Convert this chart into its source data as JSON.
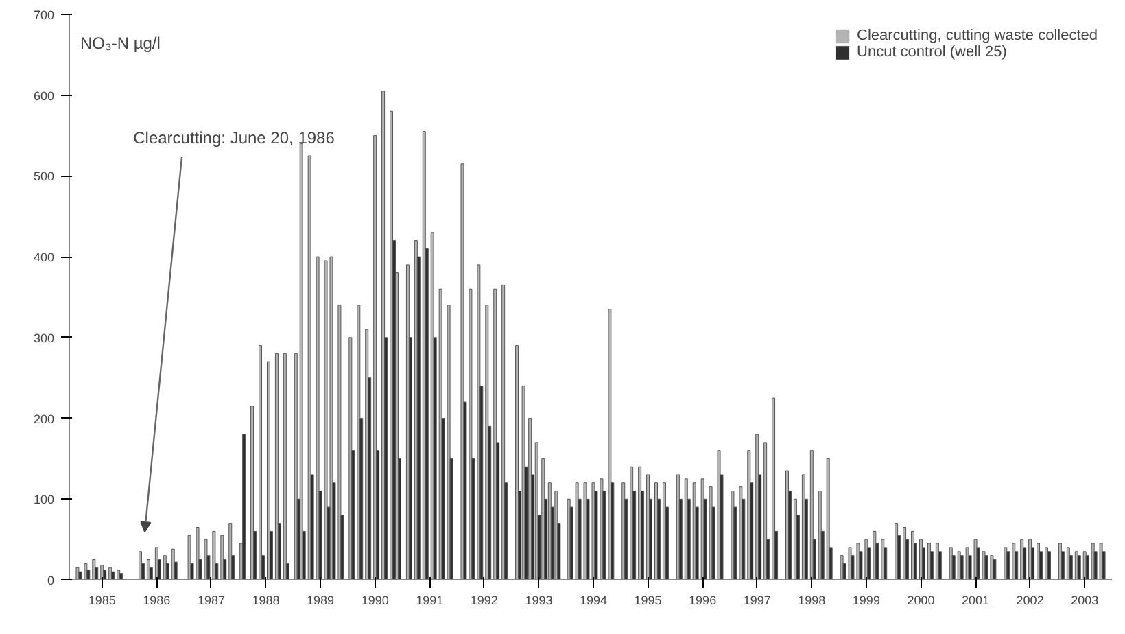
{
  "chart_data": {
    "type": "bar",
    "ylabel": "NO₃-N µg/l",
    "ylim": [
      0,
      700
    ],
    "yticks": [
      0,
      100,
      200,
      300,
      400,
      500,
      600,
      700
    ],
    "xlim": [
      1984.4,
      2003.5
    ],
    "xticks": [
      1985,
      1986,
      1987,
      1988,
      1989,
      1990,
      1991,
      1992,
      1993,
      1994,
      1995,
      1996,
      1997,
      1998,
      1999,
      2000,
      2001,
      2002,
      2003
    ],
    "legend": "top right",
    "grid": false,
    "annotations": [
      "Clearcutting: June 20, 1986"
    ],
    "series": [
      {
        "name": "Clearcutting, cutting waste collected",
        "color": "#b4b4b4",
        "x": [
          1984.55,
          1984.7,
          1984.85,
          1985,
          1985.15,
          1985.3,
          1985.7,
          1985.85,
          1986.0,
          1986.15,
          1986.3,
          1986.6,
          1986.75,
          1986.9,
          1987.05,
          1987.2,
          1987.35,
          1987.55,
          1987.75,
          1987.9,
          1988.05,
          1988.2,
          1988.35,
          1988.55,
          1988.65,
          1988.8,
          1988.95,
          1989.1,
          1989.2,
          1989.35,
          1989.55,
          1989.7,
          1989.85,
          1990.0,
          1990.15,
          1990.3,
          1990.4,
          1990.6,
          1990.75,
          1990.9,
          1991.05,
          1991.2,
          1991.35,
          1991.6,
          1991.75,
          1991.9,
          1992.05,
          1992.2,
          1992.35,
          1992.6,
          1992.72,
          1992.84,
          1992.96,
          1993.08,
          1993.2,
          1993.32,
          1993.55,
          1993.7,
          1993.85,
          1994.0,
          1994.15,
          1994.3,
          1994.55,
          1994.7,
          1994.85,
          1995.0,
          1995.15,
          1995.3,
          1995.55,
          1995.7,
          1995.85,
          1996.0,
          1996.15,
          1996.3,
          1996.55,
          1996.7,
          1996.85,
          1997.0,
          1997.15,
          1997.3,
          1997.55,
          1997.7,
          1997.85,
          1998.0,
          1998.15,
          1998.3,
          1998.55,
          1998.7,
          1998.85,
          1999.0,
          1999.15,
          1999.3,
          1999.55,
          1999.7,
          1999.85,
          2000.0,
          2000.15,
          2000.3,
          2000.55,
          2000.7,
          2000.85,
          2001.0,
          2001.15,
          2001.3,
          2001.55,
          2001.7,
          2001.85,
          2002.0,
          2002.15,
          2002.3,
          2002.55,
          2002.7,
          2002.85,
          2003.0,
          2003.15,
          2003.3
        ],
        "values": [
          15,
          20,
          25,
          18,
          15,
          12,
          35,
          25,
          40,
          30,
          38,
          55,
          65,
          50,
          60,
          55,
          70,
          45,
          215,
          290,
          270,
          280,
          280,
          280,
          540,
          525,
          400,
          395,
          400,
          340,
          300,
          340,
          310,
          550,
          605,
          580,
          380,
          390,
          420,
          555,
          430,
          360,
          340,
          515,
          360,
          390,
          340,
          360,
          365,
          290,
          240,
          200,
          170,
          150,
          120,
          110,
          100,
          120,
          120,
          120,
          125,
          335,
          120,
          140,
          140,
          130,
          120,
          120,
          130,
          125,
          120,
          125,
          115,
          160,
          110,
          115,
          160,
          180,
          170,
          225,
          135,
          100,
          130,
          160,
          110,
          150,
          30,
          40,
          45,
          50,
          60,
          50,
          70,
          65,
          60,
          50,
          45,
          45,
          40,
          35,
          40,
          50,
          35,
          30,
          40,
          45,
          50,
          50,
          45,
          40,
          45,
          40,
          35,
          35,
          45,
          45
        ]
      },
      {
        "name": "Uncut control (well 25)",
        "color": "#2e2e2e",
        "x": [
          1984.6,
          1984.75,
          1984.9,
          1985.05,
          1985.2,
          1985.35,
          1985.75,
          1985.9,
          1986.05,
          1986.2,
          1986.35,
          1986.65,
          1986.8,
          1986.95,
          1987.1,
          1987.25,
          1987.4,
          1987.6,
          1987.8,
          1987.95,
          1988.1,
          1988.25,
          1988.4,
          1988.6,
          1988.7,
          1988.85,
          1989.0,
          1989.15,
          1989.25,
          1989.4,
          1989.6,
          1989.75,
          1989.9,
          1990.05,
          1990.2,
          1990.35,
          1990.45,
          1990.65,
          1990.8,
          1990.95,
          1991.1,
          1991.25,
          1991.4,
          1991.65,
          1991.8,
          1991.95,
          1992.1,
          1992.25,
          1992.4,
          1992.65,
          1992.77,
          1992.89,
          1993.01,
          1993.13,
          1993.25,
          1993.37,
          1993.6,
          1993.75,
          1993.9,
          1994.05,
          1994.2,
          1994.35,
          1994.6,
          1994.75,
          1994.9,
          1995.05,
          1995.2,
          1995.35,
          1995.6,
          1995.75,
          1995.9,
          1996.05,
          1996.2,
          1996.35,
          1996.6,
          1996.75,
          1996.9,
          1997.05,
          1997.2,
          1997.35,
          1997.6,
          1997.75,
          1997.9,
          1998.05,
          1998.2,
          1998.35,
          1998.6,
          1998.75,
          1998.9,
          1999.05,
          1999.2,
          1999.35,
          1999.6,
          1999.75,
          1999.9,
          2000.05,
          2000.2,
          2000.35,
          2000.6,
          2000.75,
          2000.9,
          2001.05,
          2001.2,
          2001.35,
          2001.6,
          2001.75,
          2001.9,
          2002.05,
          2002.2,
          2002.35,
          2002.6,
          2002.75,
          2002.9,
          2003.05,
          2003.2,
          2003.35
        ],
        "values": [
          10,
          12,
          15,
          12,
          10,
          8,
          20,
          15,
          25,
          20,
          22,
          20,
          25,
          30,
          20,
          25,
          30,
          180,
          60,
          30,
          60,
          70,
          20,
          100,
          60,
          130,
          110,
          90,
          120,
          80,
          160,
          200,
          250,
          160,
          300,
          420,
          150,
          300,
          400,
          410,
          300,
          200,
          150,
          220,
          150,
          240,
          190,
          170,
          120,
          110,
          140,
          130,
          80,
          100,
          90,
          70,
          90,
          100,
          100,
          110,
          110,
          120,
          100,
          110,
          110,
          100,
          100,
          90,
          100,
          100,
          90,
          100,
          90,
          130,
          90,
          100,
          120,
          130,
          50,
          60,
          110,
          80,
          100,
          50,
          60,
          40,
          20,
          30,
          35,
          40,
          45,
          40,
          55,
          50,
          45,
          40,
          35,
          35,
          30,
          30,
          30,
          40,
          30,
          25,
          35,
          35,
          40,
          40,
          35,
          35,
          35,
          30,
          30,
          30,
          35,
          35
        ]
      }
    ]
  }
}
